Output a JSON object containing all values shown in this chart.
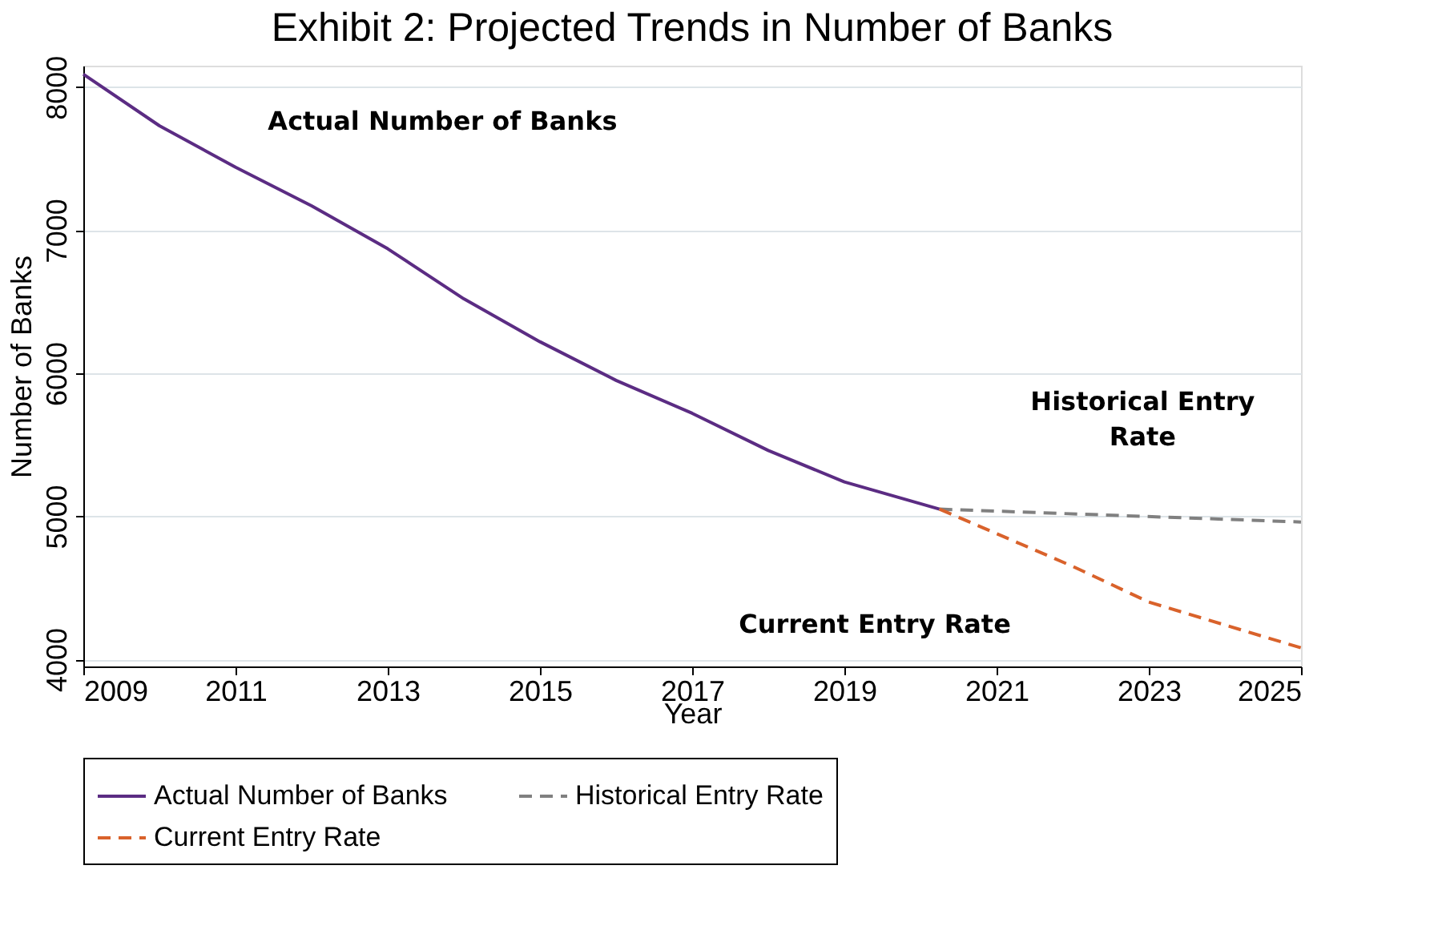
{
  "chart_data": {
    "type": "line",
    "title": "Exhibit 2: Projected Trends in Number of Banks",
    "xlabel": "Year",
    "ylabel": "Number of Banks",
    "xlim": [
      2009,
      2025
    ],
    "xticks": [
      2009,
      2011,
      2013,
      2015,
      2017,
      2019,
      2021,
      2023,
      2025
    ],
    "ylim": [
      3950,
      8150
    ],
    "yticks": [
      4000,
      5000,
      6000,
      7000,
      8000
    ],
    "grid": "y",
    "legend": "bottom",
    "marker": "none",
    "series": [
      {
        "name": "Actual Number of Banks",
        "color": "#5b2c83",
        "line_style": "solid",
        "x": [
          2009,
          2010,
          2011,
          2012,
          2013,
          2014,
          2015,
          2016,
          2017,
          2018,
          2019,
          2020.25
        ],
        "values": [
          8090,
          7730,
          7440,
          7170,
          6870,
          6520,
          6220,
          5950,
          5720,
          5460,
          5240,
          5050
        ]
      },
      {
        "name": "Historical Entry Rate",
        "color": "#808080",
        "line_style": "dashed",
        "x": [
          2020.25,
          2025
        ],
        "values": [
          5050,
          4960
        ]
      },
      {
        "name": "Current Entry Rate",
        "color": "#d9622b",
        "line_style": "dashed",
        "x": [
          2020.25,
          2022,
          2023,
          2025
        ],
        "values": [
          5050,
          4650,
          4400,
          4080
        ]
      }
    ],
    "annotations": [
      "Actual Number of Banks",
      "Historical Entry Rate",
      "Current Entry Rate"
    ]
  }
}
